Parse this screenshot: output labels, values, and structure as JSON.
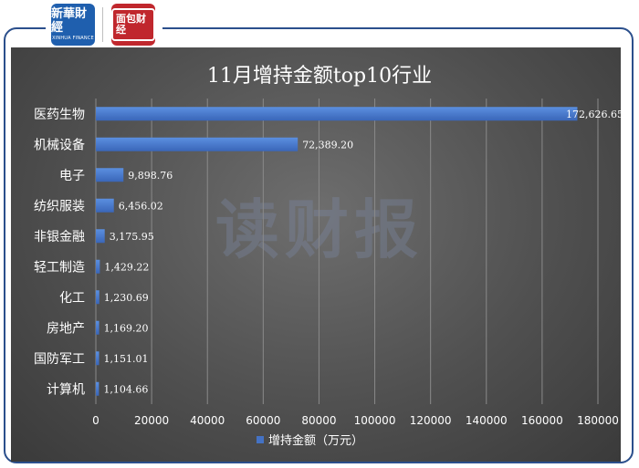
{
  "logos": {
    "xinhua_name": "新華財經",
    "xinhua_sub": "XINHUA FINANCE",
    "mianjie_name": "面包财经"
  },
  "watermark": "读财报",
  "chart_data": {
    "type": "bar",
    "orientation": "horizontal",
    "title": "11月增持金额top10行业",
    "categories": [
      "医药生物",
      "机械设备",
      "电子",
      "纺织服装",
      "非银金融",
      "轻工制造",
      "化工",
      "房地产",
      "国防军工",
      "计算机"
    ],
    "series": [
      {
        "name": "增持金额（万元）",
        "values": [
          172626.65,
          72389.2,
          9898.76,
          6456.02,
          3175.95,
          1429.22,
          1230.69,
          1169.2,
          1151.01,
          1104.66
        ],
        "labels": [
          "172,626.65",
          "72,389.20",
          "9,898.76",
          "6,456.02",
          "3,175.95",
          "1,429.22",
          "1,230.69",
          "1,169.20",
          "1,151.01",
          "1,104.66"
        ]
      }
    ],
    "xlim": [
      0,
      180000
    ],
    "xticks": [
      "0",
      "20000",
      "40000",
      "60000",
      "80000",
      "100000",
      "120000",
      "140000",
      "160000",
      "180000"
    ],
    "grid": true,
    "legend_position": "bottom",
    "colors": {
      "bar": "#4472c4",
      "bar_light": "#5b8fe0",
      "text": "#ffffff"
    }
  }
}
